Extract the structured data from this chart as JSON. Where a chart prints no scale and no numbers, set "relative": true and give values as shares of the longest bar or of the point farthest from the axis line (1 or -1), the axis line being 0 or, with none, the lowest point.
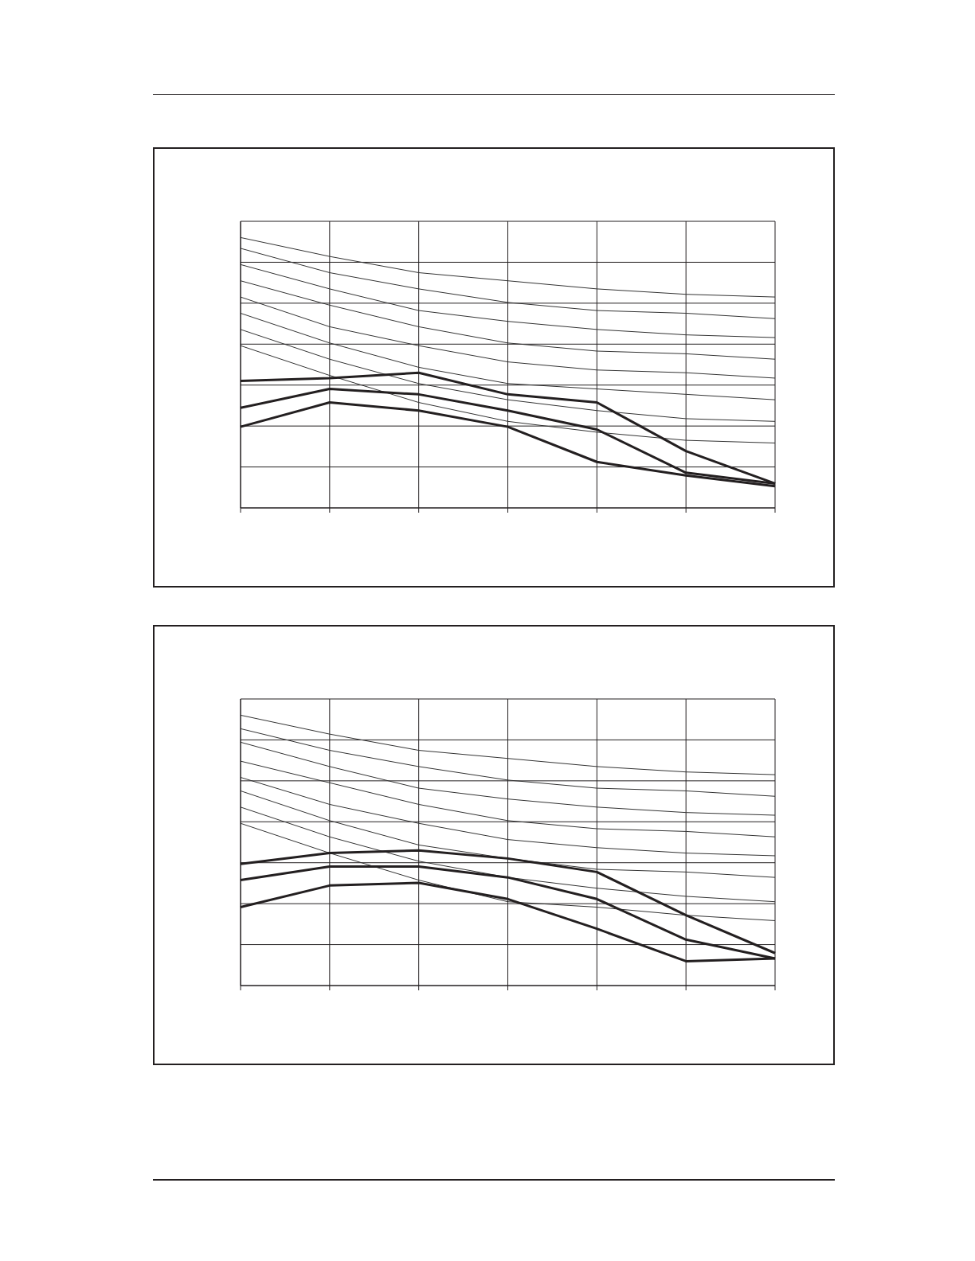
{
  "chart_data": [
    {
      "type": "line",
      "relative": true,
      "grid": true,
      "legend": false,
      "marker": "none",
      "line_style": "solid",
      "categories": [
        null,
        null,
        null,
        null,
        null,
        null,
        null
      ],
      "series": [
        {
          "color": "#333333",
          "values": [
            1.0,
            0.93,
            0.87,
            0.84,
            0.81,
            0.79,
            0.78
          ]
        },
        {
          "color": "#333333",
          "values": [
            0.96,
            0.87,
            0.81,
            0.76,
            0.73,
            0.72,
            0.7
          ]
        },
        {
          "color": "#333333",
          "values": [
            0.9,
            0.81,
            0.73,
            0.69,
            0.66,
            0.64,
            0.63
          ]
        },
        {
          "color": "#333333",
          "values": [
            0.84,
            0.75,
            0.67,
            0.61,
            0.58,
            0.57,
            0.55
          ]
        },
        {
          "color": "#333333",
          "values": [
            0.78,
            0.67,
            0.6,
            0.54,
            0.51,
            0.5,
            0.48
          ]
        },
        {
          "color": "#333333",
          "values": [
            0.72,
            0.61,
            0.52,
            0.46,
            0.44,
            0.42,
            0.4
          ]
        },
        {
          "color": "#333333",
          "values": [
            0.66,
            0.55,
            0.46,
            0.4,
            0.36,
            0.33,
            0.32
          ]
        },
        {
          "color": "#333333",
          "values": [
            0.6,
            0.49,
            0.39,
            0.32,
            0.28,
            0.25,
            0.24
          ]
        },
        {
          "color": "#231f20",
          "values": [
            0.47,
            0.48,
            0.5,
            0.42,
            0.39,
            0.21,
            0.09
          ]
        },
        {
          "color": "#231f20",
          "values": [
            0.37,
            0.44,
            0.42,
            0.36,
            0.29,
            0.13,
            0.09
          ]
        },
        {
          "color": "#231f20",
          "values": [
            0.3,
            0.39,
            0.36,
            0.3,
            0.17,
            0.12,
            0.08
          ]
        }
      ]
    },
    {
      "type": "line",
      "relative": true,
      "grid": true,
      "legend": false,
      "marker": "none",
      "line_style": "solid",
      "categories": [
        null,
        null,
        null,
        null,
        null,
        null,
        null
      ],
      "series": [
        {
          "color": "#333333",
          "values": [
            1.0,
            0.93,
            0.87,
            0.84,
            0.81,
            0.79,
            0.78
          ]
        },
        {
          "color": "#333333",
          "values": [
            0.95,
            0.87,
            0.81,
            0.76,
            0.73,
            0.72,
            0.7
          ]
        },
        {
          "color": "#333333",
          "values": [
            0.9,
            0.81,
            0.73,
            0.69,
            0.66,
            0.64,
            0.63
          ]
        },
        {
          "color": "#333333",
          "values": [
            0.83,
            0.75,
            0.67,
            0.61,
            0.58,
            0.57,
            0.55
          ]
        },
        {
          "color": "#333333",
          "values": [
            0.77,
            0.67,
            0.6,
            0.54,
            0.51,
            0.49,
            0.48
          ]
        },
        {
          "color": "#333333",
          "values": [
            0.72,
            0.61,
            0.52,
            0.47,
            0.43,
            0.42,
            0.4
          ]
        },
        {
          "color": "#333333",
          "values": [
            0.66,
            0.55,
            0.46,
            0.4,
            0.36,
            0.33,
            0.31
          ]
        },
        {
          "color": "#333333",
          "values": [
            0.6,
            0.49,
            0.39,
            0.31,
            0.29,
            0.26,
            0.24
          ]
        },
        {
          "color": "#231f20",
          "values": [
            0.45,
            0.49,
            0.5,
            0.47,
            0.42,
            0.26,
            0.12
          ]
        },
        {
          "color": "#231f20",
          "values": [
            0.39,
            0.44,
            0.44,
            0.4,
            0.32,
            0.17,
            0.1
          ]
        },
        {
          "color": "#231f20",
          "values": [
            0.29,
            0.37,
            0.38,
            0.32,
            0.21,
            0.09,
            0.1
          ]
        }
      ]
    }
  ]
}
